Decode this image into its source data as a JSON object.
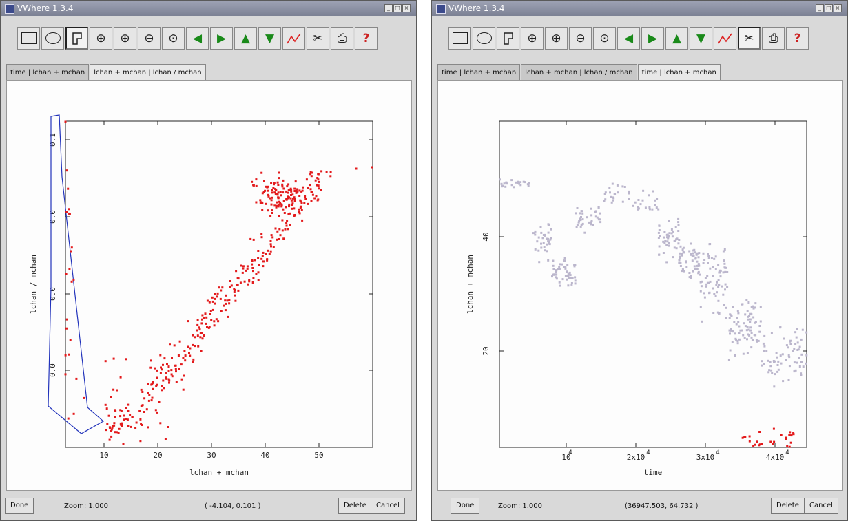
{
  "windows": [
    {
      "title": "VWhere 1.3.4",
      "tabs": [
        {
          "label": "time | lchan + mchan",
          "selected": false
        },
        {
          "label": "lchan + mchan | lchan / mchan",
          "selected": true
        }
      ],
      "statusbar": {
        "done_label": "Done",
        "zoom_text": "Zoom: 1.000",
        "coords_text": "( -4.104, 0.101 )",
        "delete_label": "Delete",
        "cancel_label": "Cancel"
      },
      "active_tool": "polygon",
      "chart_data": {
        "type": "scatter",
        "xlabel": "lchan + mchan",
        "ylabel": "lchan / mchan",
        "xticks": [
          "10",
          "20",
          "30",
          "40",
          "50"
        ],
        "yticks": [
          "0.0",
          "0.0",
          "0.0",
          "0.1"
        ],
        "xlim": [
          3,
          60
        ],
        "ylim": [
          0,
          1
        ],
        "point_color": "#e31a1c",
        "selection_polygon_color": "#2233bb"
      }
    },
    {
      "title": "VWhere 1.3.4",
      "tabs": [
        {
          "label": "time | lchan + mchan",
          "selected": false
        },
        {
          "label": "lchan + mchan | lchan / mchan",
          "selected": false
        },
        {
          "label": "time | lchan + mchan",
          "selected": true
        }
      ],
      "statusbar": {
        "done_label": "Done",
        "zoom_text": "Zoom: 1.000",
        "coords_text": "(36947.503, 64.732 )",
        "delete_label": "Delete",
        "cancel_label": "Cancel"
      },
      "active_tool": "settings",
      "chart_data": {
        "type": "scatter",
        "xlabel": "time",
        "ylabel": "lchan + mchan",
        "xticks": [
          "10",
          "2x10",
          "3x10",
          "4x10"
        ],
        "xticks_exp": "4",
        "yticks": [
          "20",
          "40"
        ],
        "xlim": [
          0,
          47500
        ],
        "ylim": [
          2,
          58
        ],
        "point_color": "#bbb6cc",
        "selected_color": "#e31a1c"
      }
    }
  ],
  "toolbar_icons": [
    "grip-icon",
    "rectangle-icon",
    "ellipse-icon",
    "polygon-icon",
    "zoom-fit-icon",
    "zoom-in-icon",
    "zoom-out-icon",
    "zoom-reset-icon",
    "arrow-left-icon",
    "arrow-right-icon",
    "arrow-up-icon",
    "arrow-down-icon",
    "plot-line-icon",
    "settings-icon",
    "print-icon",
    "help-icon"
  ]
}
